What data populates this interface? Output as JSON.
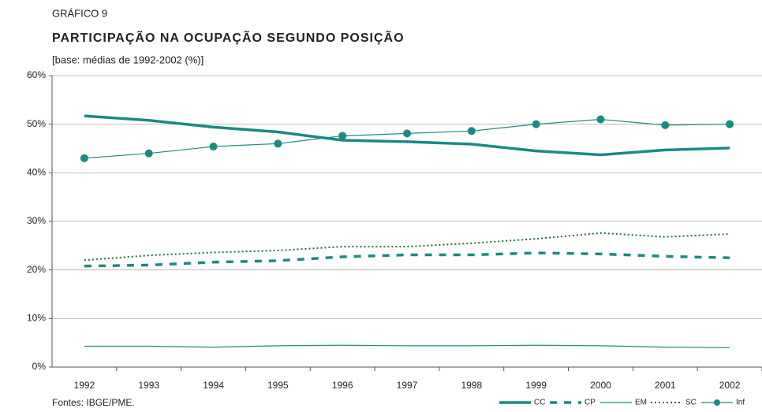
{
  "chart_data": {
    "type": "line",
    "kicker": "GRÁFICO 9",
    "title": "PARTICIPAÇÃO NA OCUPAÇÃO SEGUNDO POSIÇÃO",
    "subtitle": "[base: médias de 1992-2002 (%)]",
    "source": "Fontes:  IBGE/PME.",
    "categories": [
      "1992",
      "1993",
      "1994",
      "1995",
      "1996",
      "1997",
      "1998",
      "1999",
      "2000",
      "2001",
      "2002"
    ],
    "ylim": [
      0,
      60
    ],
    "yticks": [
      {
        "value": 0,
        "label": "0%"
      },
      {
        "value": 10,
        "label": "10%"
      },
      {
        "value": 20,
        "label": "20%"
      },
      {
        "value": 30,
        "label": "30%"
      },
      {
        "value": 40,
        "label": "40%"
      },
      {
        "value": 50,
        "label": "50%"
      },
      {
        "value": 60,
        "label": "60%"
      }
    ],
    "grid": true,
    "legend": "bottom-right",
    "series": [
      {
        "name": "CC",
        "color": "#1a8a84",
        "line_style": "thick",
        "values": [
          51.7,
          50.8,
          49.4,
          48.4,
          46.7,
          46.4,
          45.9,
          44.5,
          43.7,
          44.7,
          45.1
        ]
      },
      {
        "name": "CP",
        "color": "#1a8a84",
        "line_style": "dashed",
        "values": [
          20.8,
          21.0,
          21.6,
          21.9,
          22.7,
          23.1,
          23.1,
          23.5,
          23.3,
          22.8,
          22.5
        ]
      },
      {
        "name": "EM",
        "color": "#1a8a84",
        "line_style": "thin",
        "values": [
          4.3,
          4.3,
          4.1,
          4.4,
          4.5,
          4.4,
          4.4,
          4.5,
          4.4,
          4.1,
          4.0
        ]
      },
      {
        "name": "SC",
        "color": "#1f6e3a",
        "line_style": "dotted",
        "values": [
          22.0,
          23.0,
          23.6,
          24.0,
          24.8,
          24.8,
          25.5,
          26.4,
          27.6,
          26.8,
          27.4
        ]
      },
      {
        "name": "Inf",
        "color": "#1a8a84",
        "line_style": "markers",
        "values": [
          43.0,
          44.0,
          45.4,
          46.0,
          47.6,
          48.1,
          48.6,
          50.0,
          51.0,
          49.8,
          50.0
        ]
      }
    ]
  }
}
